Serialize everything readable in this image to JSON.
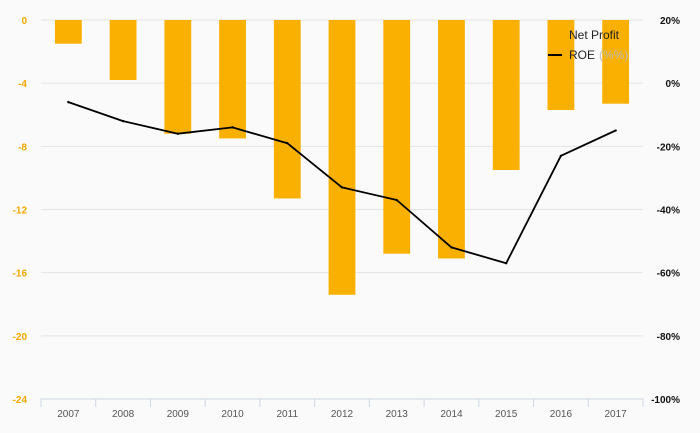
{
  "chart_data": {
    "type": "bar",
    "categories": [
      "2007",
      "2008",
      "2009",
      "2010",
      "2011",
      "2012",
      "2013",
      "2014",
      "2015",
      "2016",
      "2017"
    ],
    "series": [
      {
        "name": "Net Profit",
        "type": "bar",
        "axis": "left",
        "color": "#f9b000",
        "values": [
          -1.5,
          -3.8,
          -7.2,
          -7.5,
          -11.3,
          -17.4,
          -14.8,
          -15.1,
          -9.5,
          -5.7,
          -5.3
        ]
      },
      {
        "name": "ROE",
        "legend_suffix": "(%%)",
        "type": "line",
        "axis": "right",
        "color": "#000000",
        "values": [
          -6,
          -12,
          -16,
          -14,
          -19,
          -33,
          -37,
          -52,
          -57,
          -23,
          -15
        ]
      }
    ],
    "y_left": {
      "ticks": [
        "0",
        "-4",
        "-8",
        "-12",
        "-16",
        "-20",
        "-24"
      ],
      "range": [
        -24,
        0
      ],
      "tick_color": "#f5a800"
    },
    "y_right": {
      "ticks": [
        "20%",
        "0%",
        "-20%",
        "-40%",
        "-60%",
        "-80%",
        "-100%"
      ],
      "range": [
        -100,
        20
      ]
    },
    "grid": true,
    "legend_position": "top-right"
  }
}
